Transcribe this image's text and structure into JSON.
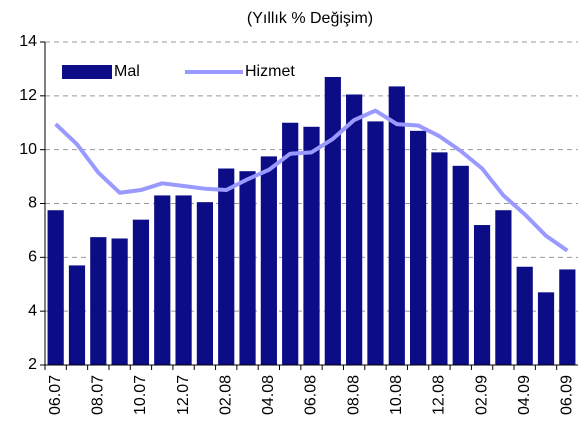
{
  "chart_data": {
    "type": "bar",
    "title": "(Yıllık % Değişim)",
    "categories": [
      "06.07",
      null,
      "08.07",
      null,
      "10.07",
      null,
      "12.07",
      null,
      "02.08",
      null,
      "04.08",
      null,
      "06.08",
      null,
      "08.08",
      null,
      "10.08",
      null,
      "12.08",
      null,
      "02.09",
      null,
      "04.09",
      null,
      "06.09"
    ],
    "series": [
      {
        "name": "Mal",
        "type": "bar",
        "color": "#0c0c86",
        "values": [
          7.75,
          5.7,
          6.75,
          6.7,
          7.4,
          8.3,
          8.3,
          8.05,
          9.3,
          9.2,
          9.75,
          11.0,
          10.85,
          12.7,
          12.05,
          11.05,
          12.35,
          10.7,
          9.9,
          9.4,
          7.2,
          7.75,
          5.65,
          4.7,
          5.55
        ]
      },
      {
        "name": "Hizmet",
        "type": "line",
        "color": "#9999ff",
        "values": [
          10.95,
          10.2,
          9.15,
          8.4,
          8.5,
          8.75,
          8.65,
          8.55,
          8.5,
          8.9,
          9.25,
          9.85,
          9.9,
          10.4,
          11.1,
          11.45,
          10.95,
          10.9,
          10.5,
          9.95,
          9.3,
          8.3,
          7.6,
          6.8,
          6.25
        ]
      }
    ],
    "ylim": [
      2,
      14
    ],
    "yticks": [
      2,
      4,
      6,
      8,
      10,
      12,
      14
    ],
    "grid": true,
    "legend": "top-left"
  }
}
